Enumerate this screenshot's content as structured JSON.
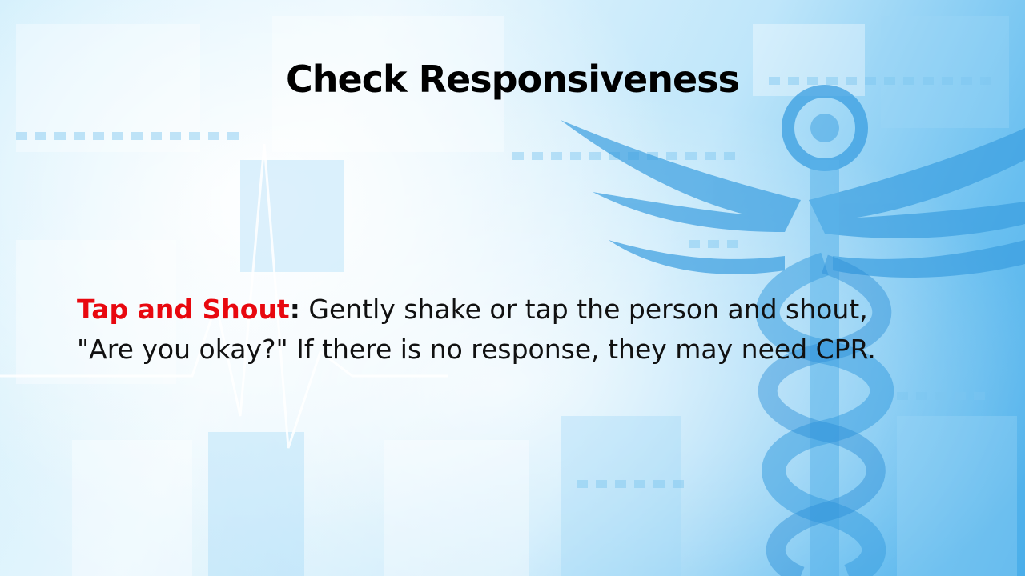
{
  "slide": {
    "title": "Check Responsiveness",
    "body": {
      "lead": "Tap and Shout",
      "separator": ":",
      "line1": " Gently shake or tap the person and shout,",
      "line2": "\"Are you okay?\" If there is no response, they may need CPR."
    }
  },
  "theme": {
    "accent": "#e8080f",
    "background": "#cfeefc",
    "graphic": "#3a9ee0"
  },
  "background_graphic": "medical-caduceus-icon"
}
